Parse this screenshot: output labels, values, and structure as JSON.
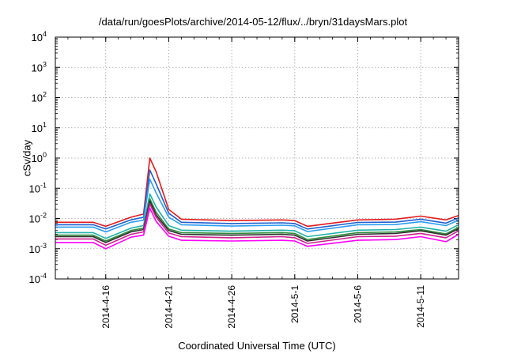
{
  "chart_data": {
    "type": "line",
    "title": "/data/run/goesPlots/archive/2014-05-12/flux/../bryn/31daysMars.plot",
    "xlabel": "Coordinated Universal Time (UTC)",
    "ylabel": "cSv/day",
    "y_scale": "log",
    "ylim_exponents": [
      -4,
      4
    ],
    "y_ticks": [
      {
        "base": "10",
        "exp": "-4"
      },
      {
        "base": "10",
        "exp": "-3"
      },
      {
        "base": "10",
        "exp": "-2"
      },
      {
        "base": "10",
        "exp": "-1"
      },
      {
        "base": "10",
        "exp": "0"
      },
      {
        "base": "10",
        "exp": "1"
      },
      {
        "base": "10",
        "exp": "2"
      },
      {
        "base": "10",
        "exp": "3"
      },
      {
        "base": "10",
        "exp": "4"
      }
    ],
    "xlim": [
      "2014-04-12",
      "2014-05-14"
    ],
    "x_ticks": [
      "2014-4-16",
      "2014-4-21",
      "2014-4-26",
      "2014-5-1",
      "2014-5-6",
      "2014-5-11"
    ],
    "grid": true,
    "legend": "none",
    "x": [
      "2014-04-12",
      "2014-04-15",
      "2014-04-16",
      "2014-04-18",
      "2014-04-19",
      "2014-04-19T12",
      "2014-04-20",
      "2014-04-21",
      "2014-04-22",
      "2014-04-26",
      "2014-04-30",
      "2014-05-01",
      "2014-05-02",
      "2014-05-06",
      "2014-05-09",
      "2014-05-11",
      "2014-05-13",
      "2014-05-14"
    ],
    "series": [
      {
        "color": "#e41a1c",
        "values": [
          0.0075,
          0.0075,
          0.0055,
          0.011,
          0.014,
          1.0,
          0.35,
          0.02,
          0.0095,
          0.0085,
          0.009,
          0.0085,
          0.0055,
          0.009,
          0.0095,
          0.012,
          0.009,
          0.0125
        ]
      },
      {
        "color": "#1f5fd0",
        "values": [
          0.0062,
          0.0062,
          0.0045,
          0.009,
          0.011,
          0.4,
          0.14,
          0.015,
          0.0075,
          0.0068,
          0.0072,
          0.0068,
          0.0045,
          0.0074,
          0.0076,
          0.0095,
          0.007,
          0.0105
        ]
      },
      {
        "color": "#2a9df4",
        "values": [
          0.0052,
          0.0052,
          0.0036,
          0.0075,
          0.0088,
          0.2,
          0.07,
          0.011,
          0.0062,
          0.0056,
          0.006,
          0.0057,
          0.0037,
          0.0062,
          0.0063,
          0.0078,
          0.0058,
          0.0088
        ]
      },
      {
        "color": "#20b2aa",
        "values": [
          0.0034,
          0.0034,
          0.0022,
          0.0048,
          0.0058,
          0.065,
          0.024,
          0.0058,
          0.0041,
          0.0038,
          0.0041,
          0.0039,
          0.0025,
          0.0041,
          0.0043,
          0.0052,
          0.0038,
          0.0062
        ]
      },
      {
        "color": "#2e8b3a",
        "values": [
          0.0028,
          0.0028,
          0.0018,
          0.004,
          0.0048,
          0.045,
          0.016,
          0.0045,
          0.0034,
          0.0032,
          0.0034,
          0.0032,
          0.002,
          0.0034,
          0.0036,
          0.0043,
          0.0031,
          0.0051
        ]
      },
      {
        "color": "#2f2f2f",
        "values": [
          0.0025,
          0.0025,
          0.0016,
          0.0036,
          0.0043,
          0.038,
          0.013,
          0.004,
          0.003,
          0.0028,
          0.003,
          0.0028,
          0.0018,
          0.003,
          0.0032,
          0.0039,
          0.0028,
          0.0046
        ]
      },
      {
        "color": "#d02090",
        "values": [
          0.0021,
          0.0021,
          0.0013,
          0.003,
          0.0036,
          0.03,
          0.011,
          0.0033,
          0.0025,
          0.0023,
          0.0025,
          0.0023,
          0.0015,
          0.0025,
          0.0026,
          0.0032,
          0.0023,
          0.0039
        ]
      },
      {
        "color": "#ff00ff",
        "values": [
          0.0016,
          0.0016,
          0.001,
          0.0024,
          0.0028,
          0.022,
          0.008,
          0.0026,
          0.0019,
          0.0018,
          0.0019,
          0.0018,
          0.0012,
          0.0019,
          0.002,
          0.0025,
          0.0017,
          0.003
        ]
      }
    ]
  }
}
